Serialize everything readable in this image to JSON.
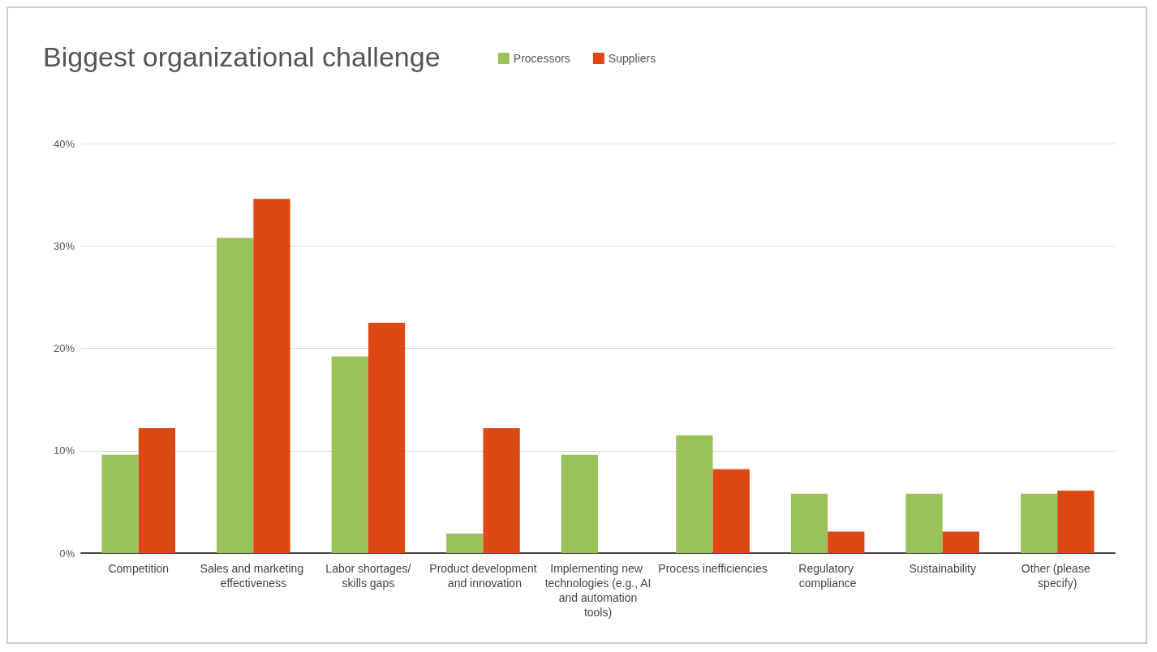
{
  "chart_data": {
    "type": "bar",
    "title": "Biggest organizational challenge",
    "categories": [
      "Competition",
      "Sales and marketing effectiveness",
      "Labor shortages/skills gaps",
      "Product development and innovation",
      "Implementing new technologies (e.g., AI and automation tools)",
      "Process inefficiencies",
      "Regulatory compliance",
      "Sustainability",
      "Other (please specify)"
    ],
    "series": [
      {
        "name": "Processors",
        "color": "#9bc25a",
        "values": [
          9.6,
          30.8,
          19.2,
          1.9,
          9.6,
          11.5,
          5.8,
          5.8,
          5.8
        ]
      },
      {
        "name": "Suppliers",
        "color": "#dd4814",
        "values": [
          12.2,
          34.6,
          22.5,
          12.2,
          0,
          8.2,
          2.1,
          2.1,
          6.1
        ]
      }
    ],
    "ylim": [
      0,
      40
    ],
    "yticks": [
      {
        "value": 0,
        "label": "0%"
      },
      {
        "value": 10,
        "label": "10%"
      },
      {
        "value": 20,
        "label": "20%"
      },
      {
        "value": 30,
        "label": "30%"
      },
      {
        "value": 40,
        "label": "40%"
      }
    ],
    "grid": "y",
    "legend": "top"
  }
}
